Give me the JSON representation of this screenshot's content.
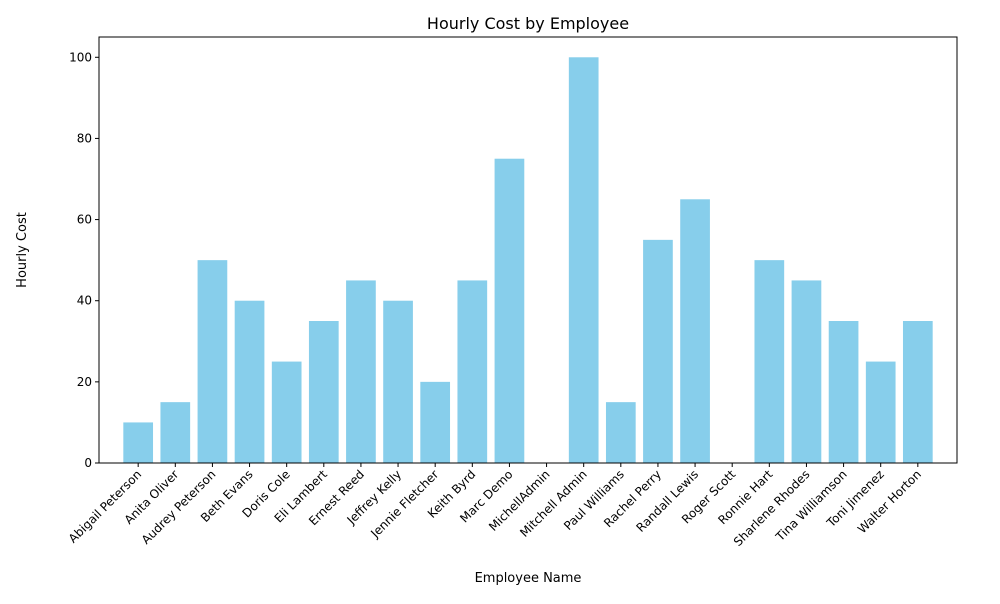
{
  "chart_data": {
    "type": "bar",
    "title": "Hourly Cost by Employee",
    "xlabel": "Employee Name",
    "ylabel": "Hourly Cost",
    "categories": [
      "Abigail Peterson",
      "Anita Oliver",
      "Audrey Peterson",
      "Beth Evans",
      "Doris Cole",
      "Eli Lambert",
      "Ernest Reed",
      "Jeffrey Kelly",
      "Jennie Fletcher",
      "Keith Byrd",
      "Marc Demo",
      "MichellAdmin",
      "Mitchell Admin",
      "Paul Williams",
      "Rachel Perry",
      "Randall Lewis",
      "Roger Scott",
      "Ronnie Hart",
      "Sharlene Rhodes",
      "Tina Williamson",
      "Toni Jimenez",
      "Walter Horton"
    ],
    "values": [
      10,
      15,
      50,
      40,
      25,
      35,
      45,
      40,
      20,
      45,
      75,
      0,
      100,
      15,
      55,
      65,
      0,
      50,
      45,
      35,
      25,
      35
    ],
    "ylim": [
      0,
      105
    ],
    "yticks": [
      0,
      20,
      40,
      60,
      80,
      100
    ],
    "grid": false,
    "bar_color": "#87CEEB"
  }
}
